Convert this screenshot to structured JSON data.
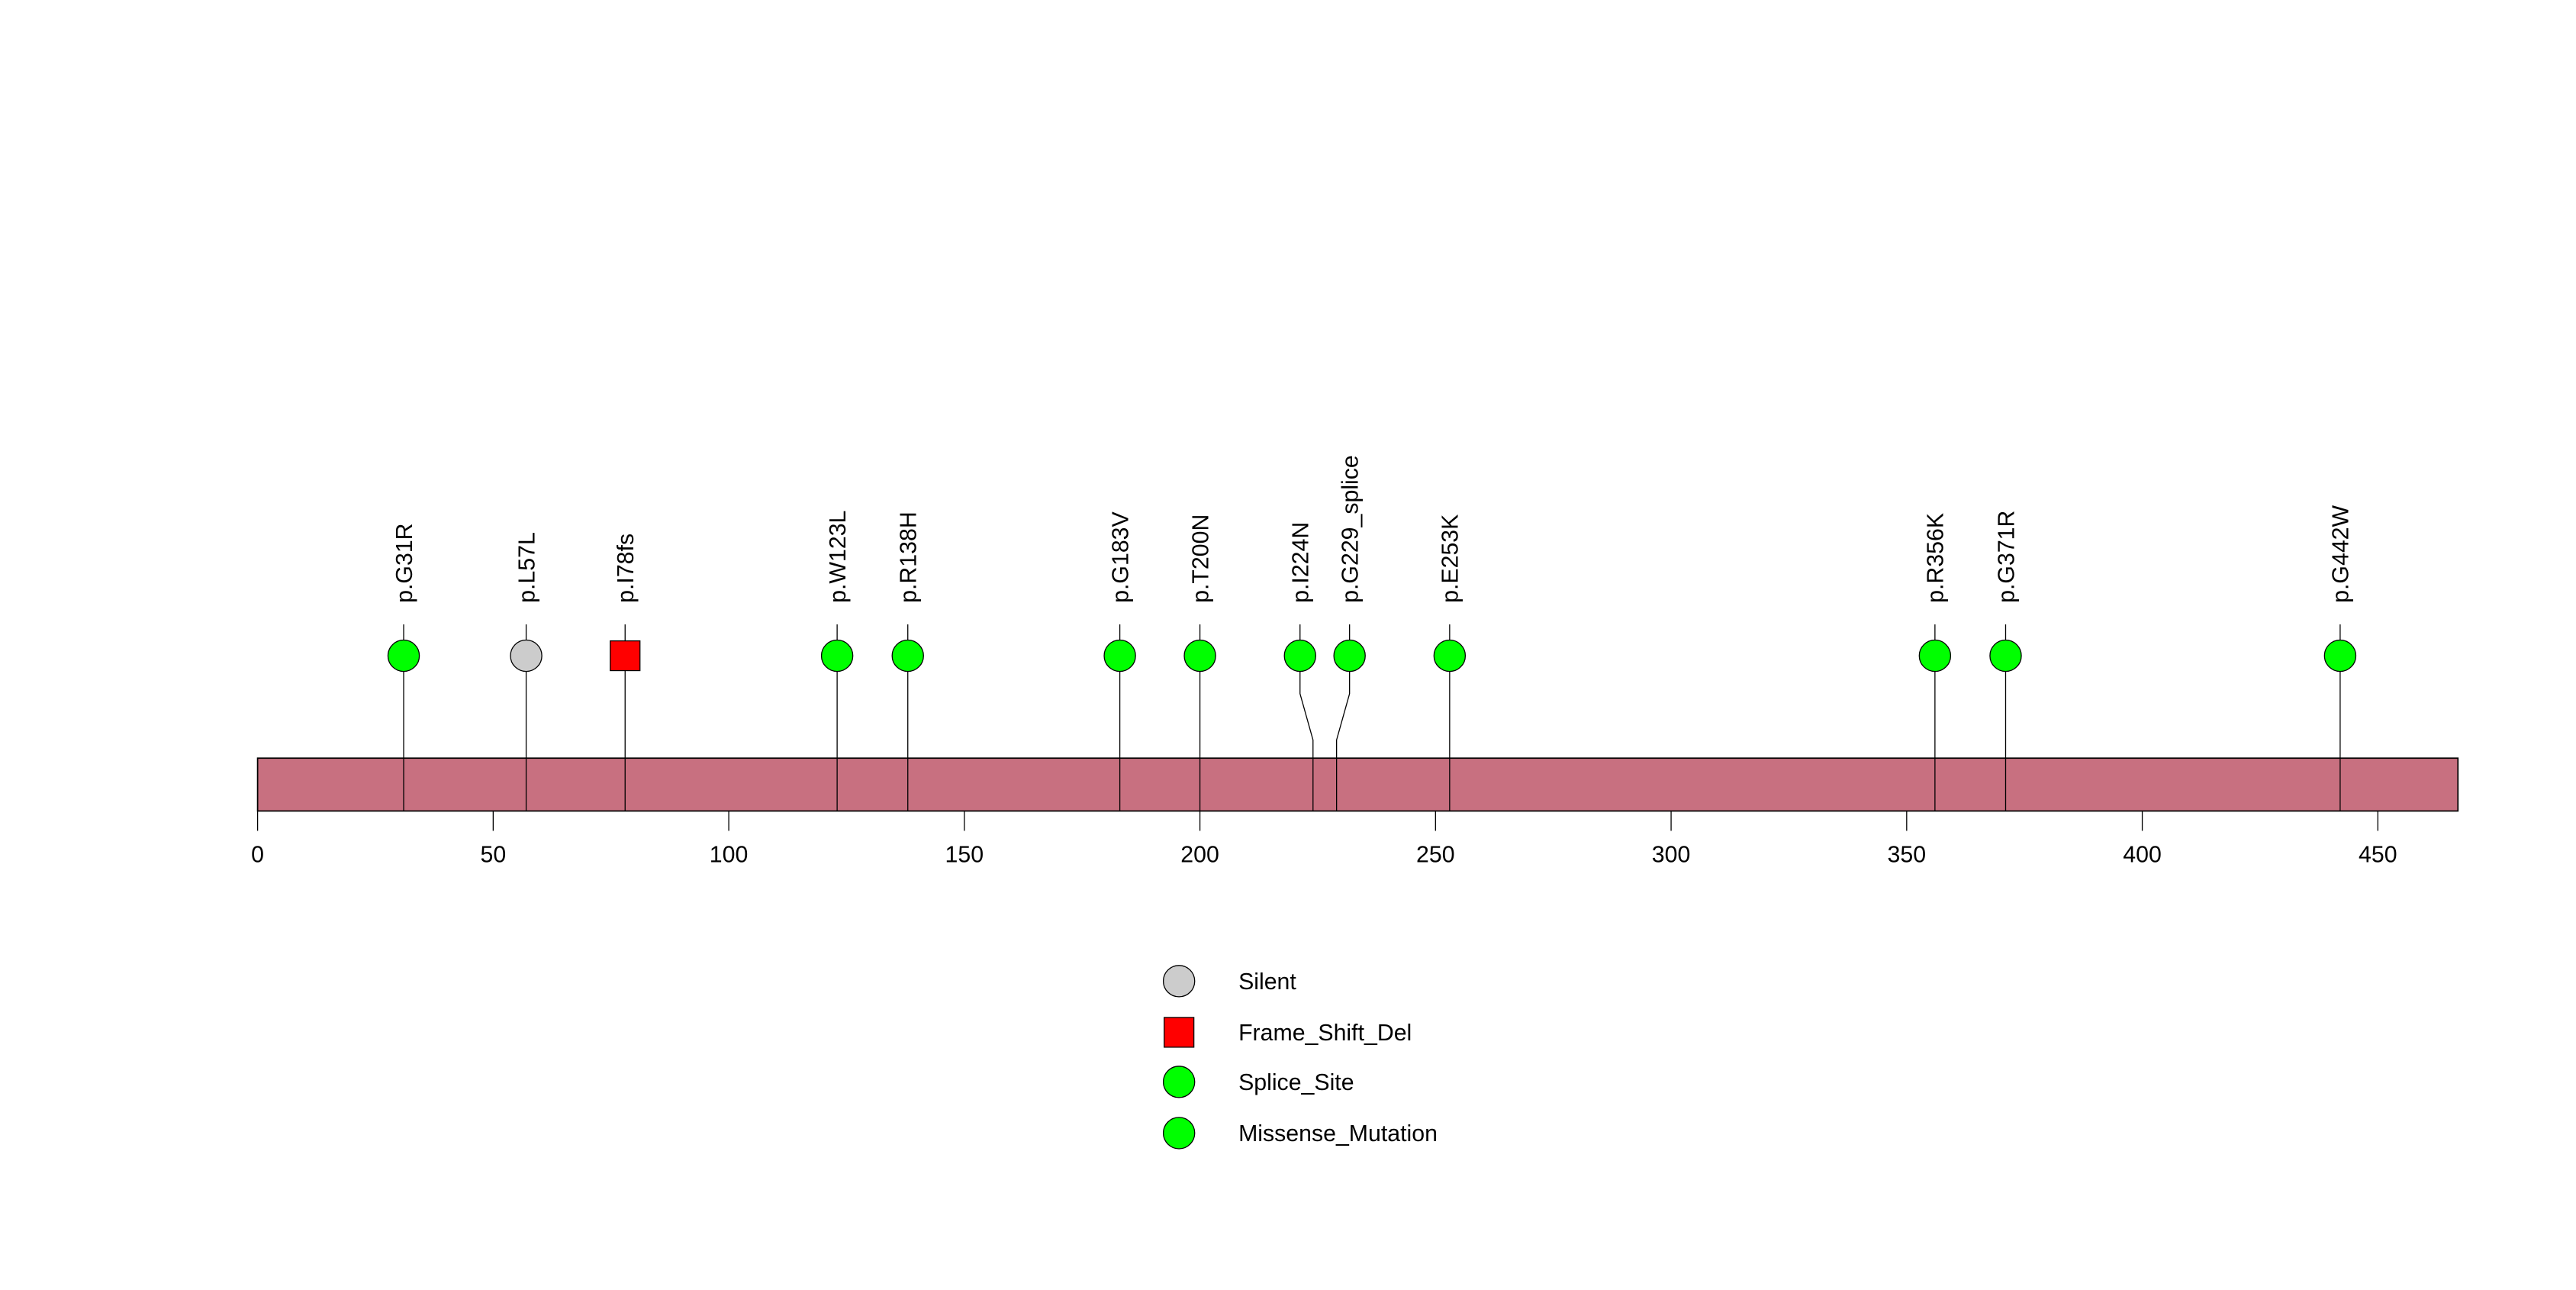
{
  "chart_data": {
    "type": "lollipop",
    "title": "",
    "xlabel": "",
    "ylabel": "",
    "protein_length": 467,
    "xlim": [
      0,
      467
    ],
    "x_ticks": [
      0,
      50,
      100,
      150,
      200,
      250,
      300,
      350,
      400,
      450
    ],
    "x_tick_labels": [
      "0",
      "50",
      "100",
      "150",
      "200",
      "250",
      "300",
      "350",
      "400",
      "450"
    ],
    "domain_color": "#c87080",
    "mutations": [
      {
        "label": "p.G31R",
        "position": 31,
        "type": "Missense_Mutation"
      },
      {
        "label": "p.L57L",
        "position": 57,
        "type": "Silent"
      },
      {
        "label": "p.I78fs",
        "position": 78,
        "type": "Frame_Shift_Del"
      },
      {
        "label": "p.W123L",
        "position": 123,
        "type": "Missense_Mutation"
      },
      {
        "label": "p.R138H",
        "position": 138,
        "type": "Missense_Mutation"
      },
      {
        "label": "p.G183V",
        "position": 183,
        "type": "Missense_Mutation"
      },
      {
        "label": "p.T200N",
        "position": 200,
        "type": "Missense_Mutation"
      },
      {
        "label": "p.I224N",
        "position": 224,
        "type": "Missense_Mutation"
      },
      {
        "label": "p.G229_splice",
        "position": 229,
        "type": "Splice_Site"
      },
      {
        "label": "p.E253K",
        "position": 253,
        "type": "Missense_Mutation"
      },
      {
        "label": "p.R356K",
        "position": 356,
        "type": "Missense_Mutation"
      },
      {
        "label": "p.G371R",
        "position": 371,
        "type": "Missense_Mutation"
      },
      {
        "label": "p.G442W",
        "position": 442,
        "type": "Missense_Mutation"
      }
    ],
    "legend": {
      "placement": "bottom-center",
      "entries": [
        {
          "label": "Silent",
          "shape": "circle",
          "color": "#cccccc"
        },
        {
          "label": "Frame_Shift_Del",
          "shape": "square",
          "color": "#ff0000"
        },
        {
          "label": "Splice_Site",
          "shape": "circle",
          "color": "#00ff00"
        },
        {
          "label": "Missense_Mutation",
          "shape": "circle",
          "color": "#00ff00"
        }
      ]
    }
  }
}
